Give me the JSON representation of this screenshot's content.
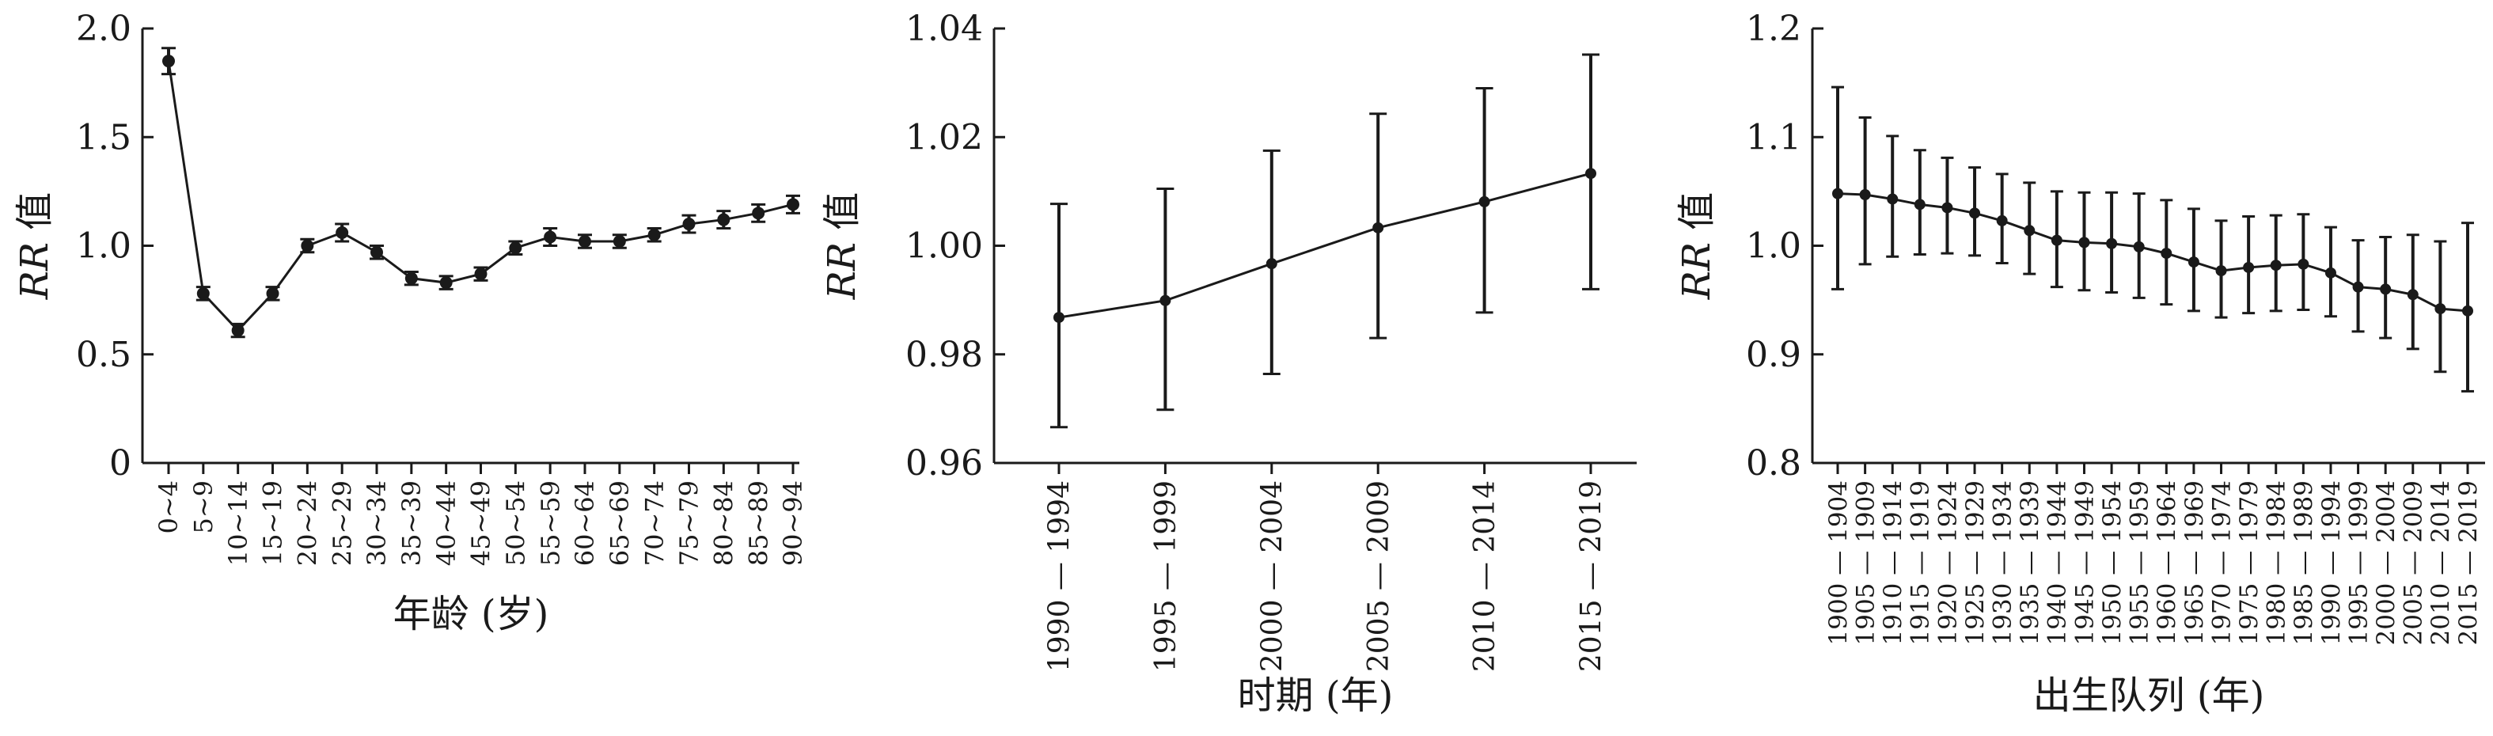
{
  "colors": {
    "ink": "#1a1a1a",
    "background": "#ffffff"
  },
  "chart_data": [
    {
      "type": "line",
      "title": "",
      "xlabel": "年龄 (岁)",
      "ylabel": {
        "italic": "RR",
        "suffix": " 值"
      },
      "ylim": [
        0,
        2.0
      ],
      "yticks": [
        "0",
        "0.5",
        "1.0",
        "1.5",
        "2.0"
      ],
      "categories": [
        "0~4",
        "5~9",
        "10~14",
        "15~19",
        "20~24",
        "25~29",
        "30~34",
        "35~39",
        "40~44",
        "45~49",
        "50~54",
        "55~59",
        "60~64",
        "65~69",
        "70~74",
        "75~79",
        "80~84",
        "85~89",
        "90~94"
      ],
      "values": [
        1.85,
        0.78,
        0.61,
        0.78,
        1.0,
        1.06,
        0.97,
        0.85,
        0.83,
        0.87,
        0.99,
        1.04,
        1.02,
        1.02,
        1.05,
        1.1,
        1.12,
        1.15,
        1.19
      ],
      "lower": [
        1.79,
        0.75,
        0.58,
        0.75,
        0.97,
        1.02,
        0.94,
        0.82,
        0.8,
        0.84,
        0.96,
        1.0,
        0.99,
        0.99,
        1.02,
        1.06,
        1.08,
        1.11,
        1.15
      ],
      "upper": [
        1.91,
        0.81,
        0.64,
        0.81,
        1.03,
        1.1,
        1.0,
        0.88,
        0.86,
        0.9,
        1.02,
        1.08,
        1.05,
        1.05,
        1.08,
        1.14,
        1.16,
        1.19,
        1.23
      ],
      "grid": false
    },
    {
      "type": "line",
      "title": "",
      "xlabel": "时期 (年)",
      "ylabel": {
        "italic": "RR",
        "suffix": " 值"
      },
      "ylim": [
        0.96,
        1.04
      ],
      "yticks": [
        "0.96",
        "0.98",
        "1.00",
        "1.02",
        "1.04"
      ],
      "categories": [
        "1990 — 1994",
        "1995 — 1999",
        "2000 — 2004",
        "2005 — 2009",
        "2010 — 2014",
        "2015 — 2019"
      ],
      "values": [
        0.9868,
        0.9899,
        0.9967,
        1.0033,
        1.0081,
        1.0133
      ],
      "lower": [
        0.9666,
        0.9698,
        0.9764,
        0.983,
        0.9877,
        0.992
      ],
      "upper": [
        1.0077,
        1.0105,
        1.0175,
        1.0243,
        1.029,
        1.0352
      ],
      "grid": false
    },
    {
      "type": "line",
      "title": "",
      "xlabel": "出生队列 (年)",
      "ylabel": {
        "italic": "RR",
        "suffix": " 值"
      },
      "ylim": [
        0.8,
        1.2
      ],
      "yticks": [
        "0.8",
        "0.9",
        "1.0",
        "1.1",
        "1.2"
      ],
      "categories": [
        "1900 — 1904",
        "1905 — 1909",
        "1910 — 1914",
        "1915 — 1919",
        "1920 — 1924",
        "1925 — 1929",
        "1930 — 1934",
        "1935 — 1939",
        "1940 — 1944",
        "1945 — 1949",
        "1950 — 1954",
        "1955 — 1959",
        "1960 — 1964",
        "1965 — 1969",
        "1970 — 1974",
        "1975 — 1979",
        "1980 — 1984",
        "1985 — 1989",
        "1990 — 1994",
        "1995 — 1999",
        "2000 — 2004",
        "2005 — 2009",
        "2010 — 2014",
        "2015 — 2019"
      ],
      "values": [
        1.048,
        1.047,
        1.043,
        1.038,
        1.035,
        1.03,
        1.023,
        1.014,
        1.005,
        1.003,
        1.002,
        0.999,
        0.993,
        0.985,
        0.977,
        0.98,
        0.982,
        0.983,
        0.975,
        0.962,
        0.96,
        0.955,
        0.942,
        0.94
      ],
      "lower": [
        0.96,
        0.983,
        0.99,
        0.992,
        0.993,
        0.991,
        0.984,
        0.974,
        0.962,
        0.959,
        0.957,
        0.952,
        0.946,
        0.94,
        0.934,
        0.938,
        0.94,
        0.941,
        0.935,
        0.921,
        0.915,
        0.905,
        0.884,
        0.866
      ],
      "upper": [
        1.146,
        1.118,
        1.101,
        1.088,
        1.081,
        1.072,
        1.066,
        1.058,
        1.05,
        1.049,
        1.049,
        1.048,
        1.042,
        1.034,
        1.023,
        1.027,
        1.028,
        1.029,
        1.017,
        1.005,
        1.008,
        1.01,
        1.004,
        1.021
      ],
      "grid": false
    }
  ]
}
